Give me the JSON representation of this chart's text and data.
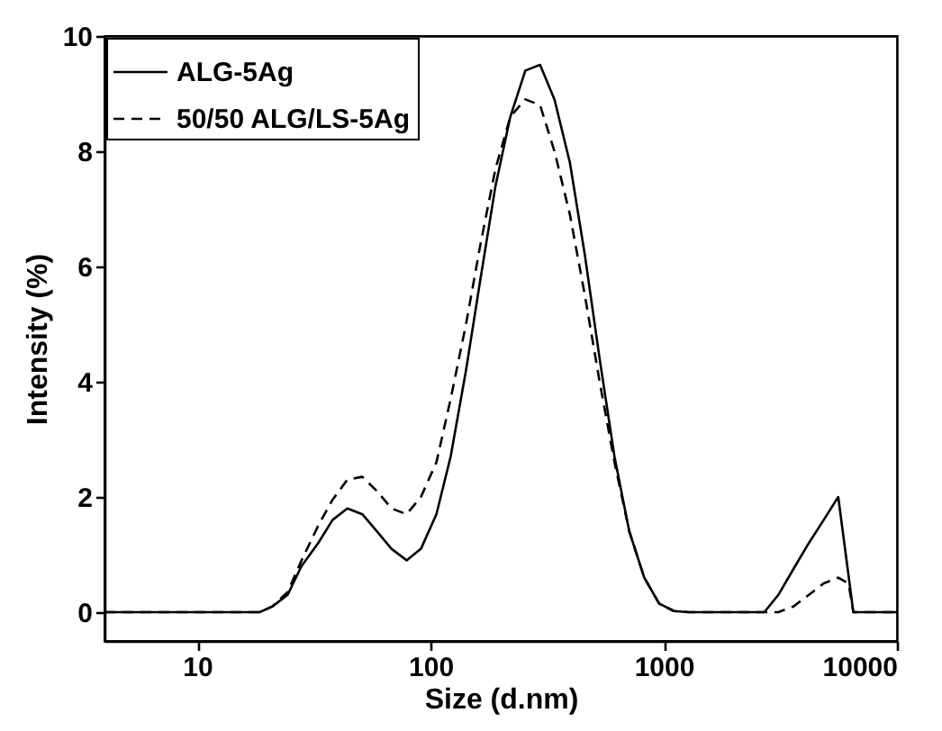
{
  "chart_data": {
    "type": "line",
    "xlabel": "Size (d.nm)",
    "ylabel": "Intensity (%)",
    "log": "x",
    "xlim": [
      4,
      10000
    ],
    "xticks": [
      10,
      100,
      1000,
      10000
    ],
    "ylim": [
      -0.5,
      10
    ],
    "yticks": [
      0,
      2,
      4,
      6,
      8,
      10
    ],
    "grid": false,
    "legend": "top left",
    "marker": "none",
    "series": [
      {
        "name": "ALG-5Ag",
        "color": "#000000",
        "line_style": "solid",
        "x": [
          4,
          18.5,
          21,
          24.4,
          28,
          33,
          38,
          44,
          51,
          59,
          68,
          79,
          91,
          106,
          122,
          142,
          164,
          190,
          220,
          255,
          295,
          340,
          396,
          459,
          531,
          615,
          712,
          825,
          955,
          1106,
          1280,
          2700,
          3100,
          3600,
          4190,
          4850,
          5600,
          6500,
          10000
        ],
        "values": [
          0,
          0,
          0.1,
          0.3,
          0.8,
          1.2,
          1.6,
          1.8,
          1.7,
          1.4,
          1.1,
          0.9,
          1.1,
          1.7,
          2.7,
          4.2,
          5.8,
          7.4,
          8.6,
          9.4,
          9.5,
          8.9,
          7.8,
          6.2,
          4.4,
          2.7,
          1.4,
          0.6,
          0.15,
          0.02,
          0,
          0,
          0.3,
          0.75,
          1.2,
          1.6,
          2.0,
          0,
          0
        ]
      },
      {
        "name": "50/50 ALG/LS-5Ag",
        "color": "#000000",
        "line_style": "dashed",
        "x": [
          4,
          18.5,
          21,
          24.4,
          28,
          33,
          38,
          44,
          51,
          59,
          68,
          79,
          91,
          106,
          122,
          142,
          164,
          190,
          220,
          255,
          295,
          340,
          396,
          459,
          531,
          615,
          712,
          825,
          955,
          1106,
          1280,
          3100,
          3600,
          4190,
          4850,
          5600,
          6200,
          6500,
          10000
        ],
        "values": [
          0,
          0,
          0.1,
          0.35,
          0.9,
          1.5,
          1.95,
          2.3,
          2.35,
          2.1,
          1.8,
          1.7,
          2.0,
          2.6,
          3.7,
          5.0,
          6.4,
          7.7,
          8.6,
          8.9,
          8.8,
          8.0,
          6.9,
          5.5,
          4.0,
          2.6,
          1.4,
          0.6,
          0.15,
          0.02,
          0,
          0,
          0.1,
          0.3,
          0.5,
          0.6,
          0.5,
          0,
          0
        ]
      }
    ]
  }
}
